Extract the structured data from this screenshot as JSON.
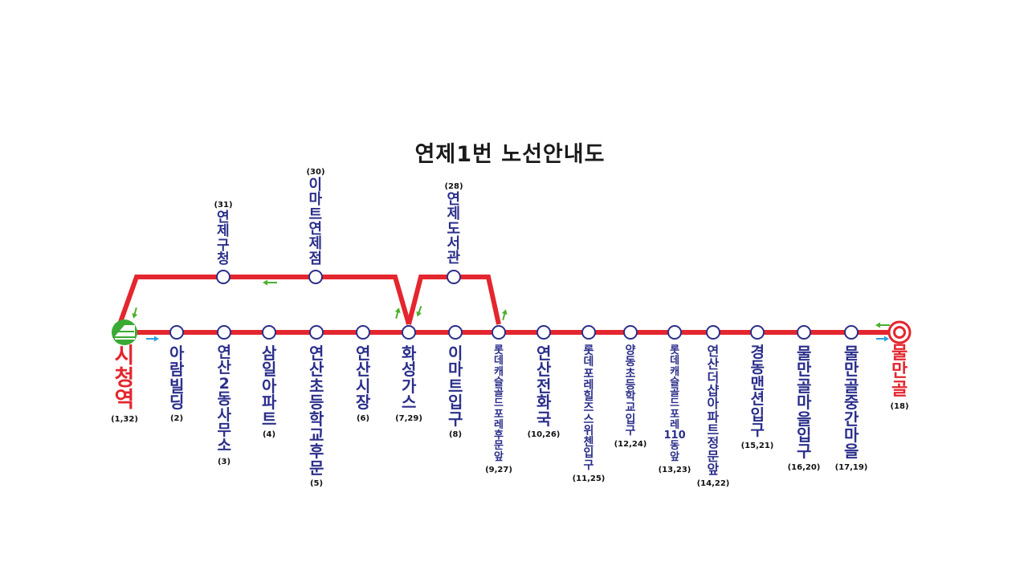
{
  "title": "연제1번 노선안내도",
  "colors": {
    "route": "#e4262e",
    "stop_stroke": "#2b2f8a",
    "label": "#2b2f8a",
    "terminal": "#e4262e",
    "arrow_green": "#4caf2e",
    "arrow_blue": "#2aa3e0",
    "start_icon": "#3aaa35"
  },
  "start_icon": "subway-station-icon",
  "end_icon": "terminal-target-icon",
  "main_stops": [
    {
      "name": "시청역",
      "code": "(1,32)",
      "terminal": true
    },
    {
      "name": "아람빌딩",
      "code": "(2)"
    },
    {
      "name": "연산2동사무소",
      "code": "(3)"
    },
    {
      "name": "삼일아파트",
      "code": "(4)"
    },
    {
      "name": "연산초등학교후문",
      "code": "(5)"
    },
    {
      "name": "연산시장",
      "code": "(6)"
    },
    {
      "name": "화성가스",
      "code": "(7,29)"
    },
    {
      "name": "이마트입구",
      "code": "(8)"
    },
    {
      "name": "롯데캐슬골드포레후문앞",
      "code": "(9,27)"
    },
    {
      "name": "연산전화국",
      "code": "(10,26)"
    },
    {
      "name": "롯데포레힐즈스위첸입구",
      "code": "(11,25)"
    },
    {
      "name": "양동초등학교입구",
      "code": "(12,24)"
    },
    {
      "name": "롯데캐슬골드포레110동앞",
      "code": "(13,23)"
    },
    {
      "name": "연산더샵아파트정문앞",
      "code": "(14,22)"
    },
    {
      "name": "경동맨션입구",
      "code": "(15,21)"
    },
    {
      "name": "물만골마을입구",
      "code": "(16,20)"
    },
    {
      "name": "물만골중간마을",
      "code": "(17,19)"
    },
    {
      "name": "물만골",
      "code": "(18)",
      "terminal": true
    }
  ],
  "return_stops": [
    {
      "name": "연제구청",
      "code": "(31)"
    },
    {
      "name": "이마트연제점",
      "code": "(30)"
    },
    {
      "name": "연제도서관",
      "code": "(28)"
    }
  ]
}
